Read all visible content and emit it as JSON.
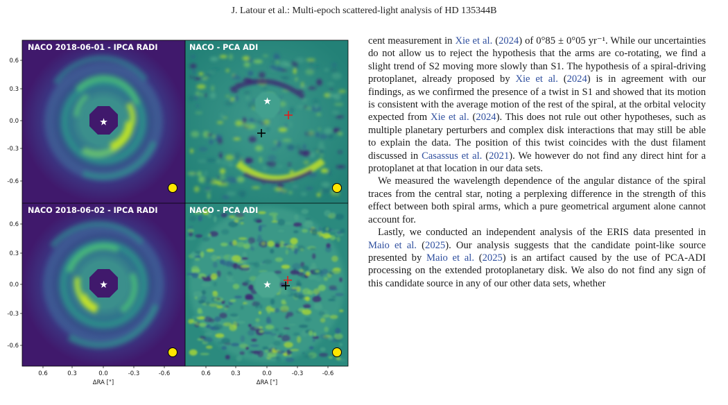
{
  "running_head": "J. Latour et al.: Multi-epoch scattered-light analysis of HD 135344B",
  "figure": {
    "panels": [
      {
        "title": "NACO 2018-06-01 - IPCA RADI",
        "kind": "ipca"
      },
      {
        "title": "NACO - PCA ADI",
        "kind": "pca"
      },
      {
        "title": "NACO 2018-06-02 - IPCA RADI",
        "kind": "ipca"
      },
      {
        "title": "NACO - PCA ADI",
        "kind": "pca"
      }
    ],
    "y_ticks_top": [
      "0.6",
      "0.3",
      "0.0",
      "-0.3",
      "-0.6"
    ],
    "y_ticks_bottom": [
      "0.6",
      "0.3",
      "0.0",
      "-0.3",
      "-0.6"
    ],
    "x_ticks_left": [
      "0.6",
      "0.3",
      "0.0",
      "-0.3",
      "-0.6"
    ],
    "x_ticks_right": [
      "0.6",
      "0.3",
      "0.0",
      "-0.3",
      "-0.6"
    ],
    "xlabel_left": "ΔRA [\"]",
    "xlabel_right": "ΔRA [\"]",
    "star_symbol": "★",
    "colors": {
      "ipca_bg": "#3f1a6b",
      "ipca_mid": "#2b7f8e",
      "ipca_bright": "#b5de2b",
      "pca_bg": "#2a8a7e",
      "beam": "#ffe600",
      "marker_red": "#e01f1f",
      "marker_black": "#000000"
    }
  },
  "text": {
    "p1": [
      {
        "t": "cent measurement in "
      },
      {
        "t": "Xie et al.",
        "cite": true
      },
      {
        "t": " ("
      },
      {
        "t": "2024",
        "cite": true
      },
      {
        "t": ") of 0°85 ± 0°05 yr⁻¹. While our uncertainties do not allow us to reject the hypothesis that the arms are co-rotating, we find a slight trend of S2 moving more slowly than S1. The hypothesis of a spiral-driving protoplanet, already proposed by "
      },
      {
        "t": "Xie et al.",
        "cite": true
      },
      {
        "t": " ("
      },
      {
        "t": "2024",
        "cite": true
      },
      {
        "t": ") is in agreement with our findings, as we confirmed the presence of a twist in S1 and showed that its motion is consistent with the average motion of the rest of the spiral, at the orbital velocity expected from "
      },
      {
        "t": "Xie et al.",
        "cite": true
      },
      {
        "t": " ("
      },
      {
        "t": "2024",
        "cite": true
      },
      {
        "t": "). This does not rule out other hypotheses, such as multiple planetary perturbers and complex disk interactions that may still be able to explain the data. The position of this twist coincides with the dust filament discussed in "
      },
      {
        "t": "Casassus et al.",
        "cite": true
      },
      {
        "t": " ("
      },
      {
        "t": "2021",
        "cite": true
      },
      {
        "t": "). We however do not find any direct hint for a protoplanet at that location in our data sets."
      }
    ],
    "p2": "We measured the wavelength dependence of the angular distance of the spiral traces from the central star, noting a perplexing difference in the strength of this effect between both spiral arms, which a pure geometrical argument alone cannot account for.",
    "p3": [
      {
        "t": "Lastly, we conducted an independent analysis of the ERIS data presented in "
      },
      {
        "t": "Maio et al.",
        "cite": true
      },
      {
        "t": " ("
      },
      {
        "t": "2025",
        "cite": true
      },
      {
        "t": "). Our analysis suggests that the candidate point-like source presented by "
      },
      {
        "t": "Maio et al.",
        "cite": true
      },
      {
        "t": " ("
      },
      {
        "t": "2025",
        "cite": true
      },
      {
        "t": ") is an artifact caused by the use of PCA-ADI processing on the extended protoplanetary disk. We also do not find any sign of this candidate source in any of our other data sets, whether"
      }
    ]
  }
}
